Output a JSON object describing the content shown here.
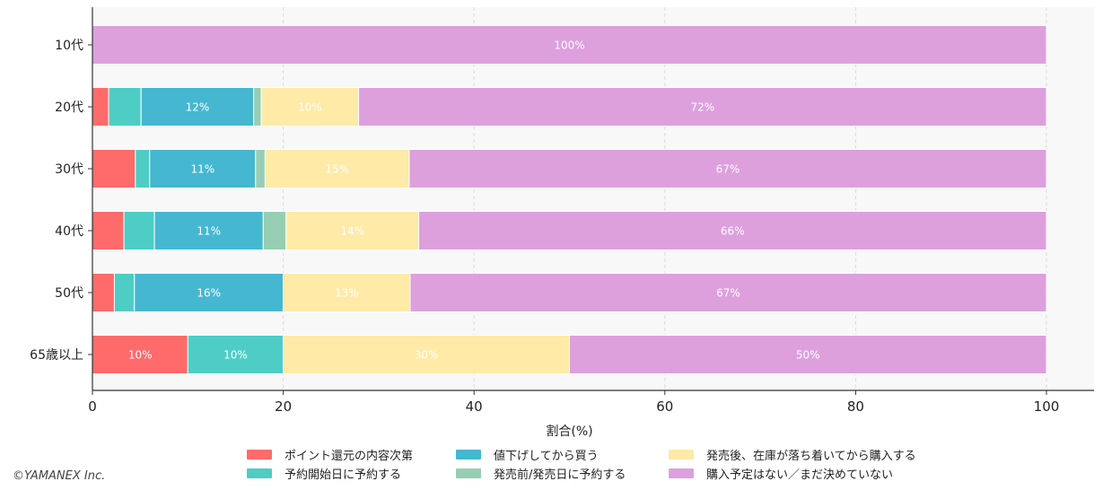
{
  "chart_data": {
    "type": "bar",
    "orientation": "horizontal",
    "stacked": true,
    "xlabel": "割合(%)",
    "ylabel": "",
    "xlim": [
      0,
      100
    ],
    "x_ticks": [
      "0",
      "20",
      "40",
      "60",
      "80",
      "100"
    ],
    "grid": "vertical dashed",
    "legend_position": "bottom-center",
    "categories": [
      "10代",
      "20代",
      "30代",
      "40代",
      "50代",
      "65歳以上"
    ],
    "series": [
      {
        "name": "ポイント還元の内容次第",
        "color": "#ff6b6b",
        "values": [
          0,
          1.7,
          4.5,
          3.3,
          2.3,
          10
        ],
        "labels": [
          "",
          "",
          "",
          "",
          "",
          "10%"
        ]
      },
      {
        "name": "予約開始日に予約する",
        "color": "#4ecdc4",
        "values": [
          0,
          3.4,
          1.5,
          3.2,
          2.1,
          10
        ],
        "labels": [
          "",
          "",
          "",
          "",
          "",
          "10%"
        ]
      },
      {
        "name": "値下げしてから買う",
        "color": "#45b7d1",
        "values": [
          0,
          11.8,
          11.1,
          11.4,
          15.6,
          0
        ],
        "labels": [
          "",
          "12%",
          "11%",
          "11%",
          "16%",
          ""
        ]
      },
      {
        "name": "発売前/発売日に予約する",
        "color": "#96ceb4",
        "values": [
          0,
          0.8,
          1.0,
          2.4,
          0,
          0
        ],
        "labels": [
          "",
          "",
          "",
          "",
          "",
          ""
        ]
      },
      {
        "name": "発売後、在庫が落ち着いてから購入する",
        "color": "#ffeaa7",
        "values": [
          0,
          10.2,
          15.1,
          13.9,
          13.3,
          30
        ],
        "labels": [
          "",
          "10%",
          "15%",
          "14%",
          "13%",
          "30%"
        ]
      },
      {
        "name": "購入予定はない／まだ決めていない",
        "color": "#dda0dd",
        "values": [
          100,
          72.1,
          66.8,
          65.8,
          66.7,
          50
        ],
        "labels": [
          "100%",
          "72%",
          "67%",
          "66%",
          "67%",
          "50%"
        ]
      }
    ]
  },
  "footer": {
    "copyright": "©YAMANEX Inc."
  }
}
